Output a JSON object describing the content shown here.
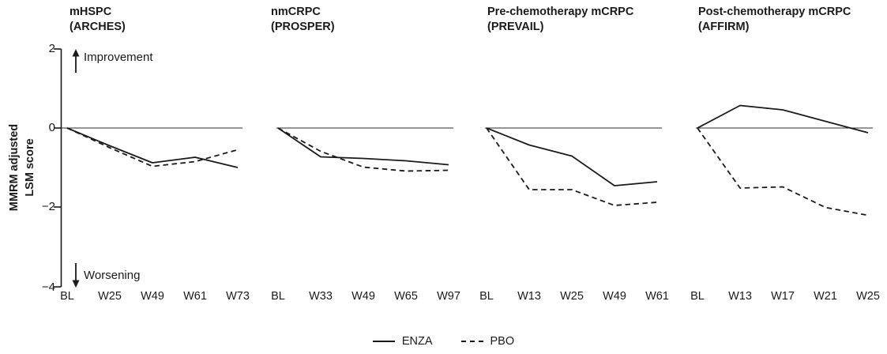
{
  "figure": {
    "ylabel": "MMRM adjusted\nLSM score",
    "yticks": [
      "2",
      "0",
      "−2",
      "−4"
    ],
    "annotations": {
      "improvement": "Improvement",
      "worsening": "Worsening"
    },
    "legend": [
      {
        "label": "ENZA",
        "style": "solid"
      },
      {
        "label": "PBO",
        "style": "dashed"
      }
    ],
    "colors": {
      "line": "#1a1a1a",
      "zero_line": "#2e2e2e",
      "text": "#1a1a1a",
      "background": "#ffffff"
    }
  },
  "chart_data": [
    {
      "type": "line",
      "title": "mHSPC\n(ARCHES)",
      "categories": [
        "BL",
        "W25",
        "W49",
        "W61",
        "W73"
      ],
      "series": [
        {
          "name": "ENZA",
          "style": "solid",
          "values": [
            0,
            -0.45,
            -0.88,
            -0.74,
            -1.0
          ]
        },
        {
          "name": "PBO",
          "style": "dashed",
          "values": [
            0,
            -0.5,
            -0.97,
            -0.85,
            -0.55
          ]
        }
      ],
      "ylim": [
        -4,
        2
      ],
      "yticks": [
        2,
        0,
        -2,
        -4
      ],
      "grid": false
    },
    {
      "type": "line",
      "title": "nmCRPC\n(PROSPER)",
      "categories": [
        "BL",
        "W33",
        "W49",
        "W65",
        "W97"
      ],
      "series": [
        {
          "name": "ENZA",
          "style": "solid",
          "values": [
            0,
            -0.73,
            -0.77,
            -0.83,
            -0.93
          ]
        },
        {
          "name": "PBO",
          "style": "dashed",
          "values": [
            0,
            -0.59,
            -0.99,
            -1.09,
            -1.07
          ]
        }
      ],
      "ylim": [
        -4,
        2
      ],
      "yticks": [
        2,
        0,
        -2,
        -4
      ],
      "grid": false
    },
    {
      "type": "line",
      "title": "Pre-chemotherapy mCRPC\n(PREVAIL)",
      "categories": [
        "BL",
        "W13",
        "W25",
        "W49",
        "W61"
      ],
      "series": [
        {
          "name": "ENZA",
          "style": "solid",
          "values": [
            0,
            -0.43,
            -0.71,
            -1.46,
            -1.36
          ]
        },
        {
          "name": "PBO",
          "style": "dashed",
          "values": [
            0,
            -1.56,
            -1.56,
            -1.96,
            -1.88
          ]
        }
      ],
      "ylim": [
        -4,
        2
      ],
      "yticks": [
        2,
        0,
        -2,
        -4
      ],
      "grid": false
    },
    {
      "type": "line",
      "title": "Post-chemotherapy mCRPC\n(AFFIRM)",
      "categories": [
        "BL",
        "W13",
        "W17",
        "W21",
        "W25"
      ],
      "series": [
        {
          "name": "ENZA",
          "style": "solid",
          "values": [
            0,
            0.57,
            0.46,
            0.17,
            -0.12
          ]
        },
        {
          "name": "PBO",
          "style": "dashed",
          "values": [
            0,
            -1.52,
            -1.49,
            -2.01,
            -2.21
          ]
        }
      ],
      "ylim": [
        -4,
        2
      ],
      "yticks": [
        2,
        0,
        -2,
        -4
      ],
      "grid": false
    }
  ]
}
